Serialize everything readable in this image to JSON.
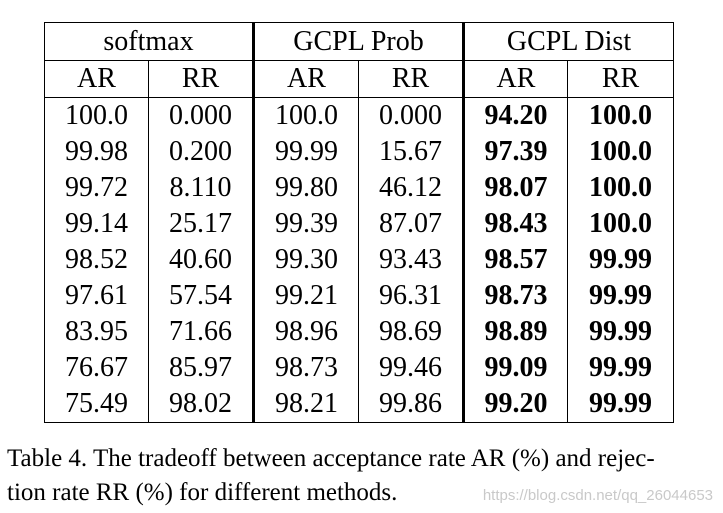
{
  "table": {
    "groups": [
      {
        "label": "softmax"
      },
      {
        "label": "GCPL Prob"
      },
      {
        "label": "GCPL Dist"
      }
    ],
    "subheaders": [
      "AR",
      "RR",
      "AR",
      "RR",
      "AR",
      "RR"
    ],
    "rows": [
      [
        "100.0",
        "0.000",
        "100.0",
        "0.000",
        "94.20",
        "100.0"
      ],
      [
        "99.98",
        "0.200",
        "99.99",
        "15.67",
        "97.39",
        "100.0"
      ],
      [
        "99.72",
        "8.110",
        "99.80",
        "46.12",
        "98.07",
        "100.0"
      ],
      [
        "99.14",
        "25.17",
        "99.39",
        "87.07",
        "98.43",
        "100.0"
      ],
      [
        "98.52",
        "40.60",
        "99.30",
        "93.43",
        "98.57",
        "99.99"
      ],
      [
        "97.61",
        "57.54",
        "99.21",
        "96.31",
        "98.73",
        "99.99"
      ],
      [
        "83.95",
        "71.66",
        "98.96",
        "98.69",
        "98.89",
        "99.99"
      ],
      [
        "76.67",
        "85.97",
        "98.73",
        "99.46",
        "99.09",
        "99.99"
      ],
      [
        "75.49",
        "98.02",
        "98.21",
        "99.86",
        "99.20",
        "99.99"
      ]
    ]
  },
  "caption": {
    "line1": "Table 4. The tradeoff between acceptance rate AR (%) and rejec-",
    "line2": "tion rate RR (%) for different methods."
  },
  "watermark": "https://blog.csdn.net/qq_26044653"
}
